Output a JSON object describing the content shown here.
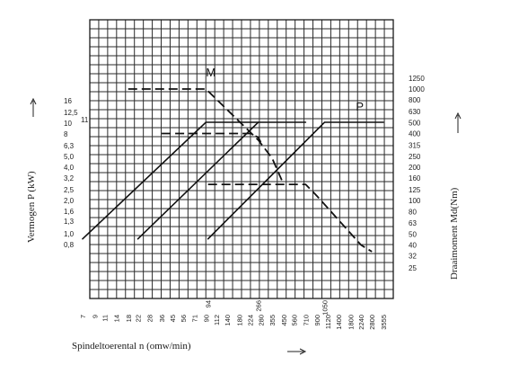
{
  "chart_data": {
    "type": "line",
    "xlabel": "Spindeltoerental n (omw/min)",
    "ylabel_left": "Vermogen P (kW)",
    "ylabel_right": "Draaimoment Md(Nm)",
    "x_scale": "log",
    "y_left_scale": "log",
    "y_right_scale": "log",
    "grid": true,
    "x_ticks": [
      "7",
      "9",
      "11",
      "14",
      "18",
      "22",
      "28",
      "36",
      "45",
      "56",
      "71",
      "90",
      "112",
      "140",
      "180",
      "224",
      "280",
      "355",
      "450",
      "560",
      "710",
      "900",
      "1120",
      "1400",
      "1800",
      "2240",
      "2800",
      "3555"
    ],
    "x_ticks_above": [
      "94",
      "266",
      "1050"
    ],
    "y_left_ticks": [
      "0,8",
      "1,0",
      "1,3",
      "1,6",
      "2,0",
      "2,5",
      "3,2",
      "4,0",
      "5,0",
      "6,3",
      "8",
      "10",
      "12,5",
      "16"
    ],
    "y_right_ticks": [
      "25",
      "32",
      "40",
      "50",
      "63",
      "80",
      "100",
      "125",
      "160",
      "200",
      "250",
      "315",
      "400",
      "500",
      "630",
      "800",
      "1000",
      "1250"
    ],
    "series": [
      {
        "name": "P",
        "unit": "kW",
        "axis": "left",
        "style": "solid",
        "segments": [
          [
            [
              7,
              0.9
            ],
            [
              90,
              10.2
            ],
            [
              266,
              10.2
            ]
          ],
          [
            [
              22,
              0.9
            ],
            [
              266,
              10.2
            ],
            [
              710,
              10.2
            ]
          ],
          [
            [
              94,
              0.9
            ],
            [
              1050,
              10.2
            ],
            [
              3555,
              10.2
            ]
          ]
        ]
      },
      {
        "name": "M",
        "unit": "Nm",
        "axis": "right",
        "style": "dashed",
        "segments": [
          [
            [
              18,
              1000
            ],
            [
              90,
              1000
            ],
            [
              266,
              350
            ],
            [
              355,
              240
            ],
            [
              450,
              140
            ]
          ],
          [
            [
              36,
              400
            ],
            [
              224,
              400
            ],
            [
              266,
              370
            ],
            [
              280,
              335
            ]
          ],
          [
            [
              94,
              140
            ],
            [
              710,
              140
            ],
            [
              900,
              110
            ],
            [
              2240,
              40
            ],
            [
              2800,
              35
            ]
          ]
        ]
      }
    ],
    "annotations": [
      "11"
    ]
  }
}
